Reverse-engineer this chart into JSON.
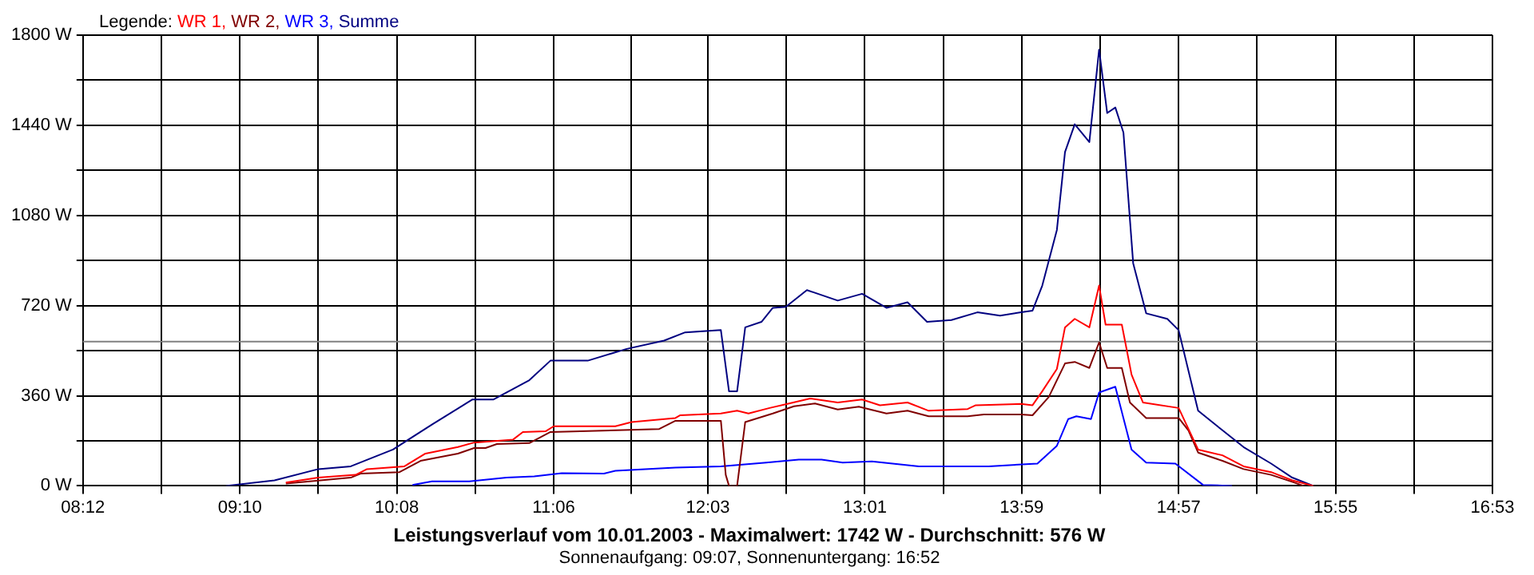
{
  "chart_data": {
    "type": "line",
    "title": "Leistungsverlauf vom 10.01.2003 - Maximalwert: 1742 W - Durchschnitt: 576 W",
    "subtitle": "Sonnenaufgang: 09:07, Sonnenuntergang: 16:52",
    "legend_title": "Legende:",
    "legend": "top left",
    "grid": true,
    "marker": "none",
    "line_style": "solid",
    "xlim": [
      8.2,
      16.8833
    ],
    "xticks": [
      {
        "value": 8.2,
        "label": "08:12"
      },
      {
        "value": 8.6833,
        "label": null
      },
      {
        "value": 9.1667,
        "label": "09:10"
      },
      {
        "value": 9.65,
        "label": null
      },
      {
        "value": 10.1333,
        "label": "10:08"
      },
      {
        "value": 10.6167,
        "label": null
      },
      {
        "value": 11.1,
        "label": "11:06"
      },
      {
        "value": 11.575,
        "label": null
      },
      {
        "value": 12.05,
        "label": "12:03"
      },
      {
        "value": 12.5333,
        "label": null
      },
      {
        "value": 13.0167,
        "label": "13:01"
      },
      {
        "value": 13.5,
        "label": null
      },
      {
        "value": 13.9833,
        "label": "13:59"
      },
      {
        "value": 14.4667,
        "label": null
      },
      {
        "value": 14.95,
        "label": "14:57"
      },
      {
        "value": 15.4333,
        "label": null
      },
      {
        "value": 15.9167,
        "label": "15:55"
      },
      {
        "value": 16.4,
        "label": null
      },
      {
        "value": 16.8833,
        "label": "16:53"
      }
    ],
    "ylim": [
      0,
      1800
    ],
    "yticks": [
      {
        "value": 0,
        "label": "0 W"
      },
      {
        "value": 180,
        "label": null
      },
      {
        "value": 360,
        "label": "360 W"
      },
      {
        "value": 540,
        "label": null
      },
      {
        "value": 720,
        "label": "720 W"
      },
      {
        "value": 900,
        "label": null
      },
      {
        "value": 1080,
        "label": "1080 W"
      },
      {
        "value": 1260,
        "label": null
      },
      {
        "value": 1440,
        "label": "1440 W"
      },
      {
        "value": 1620,
        "label": null
      },
      {
        "value": 1800,
        "label": "1800 W"
      }
    ],
    "ref_lines": [
      {
        "axis": "y",
        "value": 576,
        "color": "#808080"
      }
    ],
    "series": [
      {
        "name": "WR 1,",
        "color": "#ff0000",
        "x": [
          9.45,
          9.65,
          9.88,
          9.95,
          10.18,
          10.31,
          10.51,
          10.61,
          10.85,
          10.91,
          11.05,
          11.1,
          11.48,
          11.58,
          11.85,
          11.88,
          12.13,
          12.23,
          12.3,
          12.43,
          12.55,
          12.68,
          12.85,
          13.0,
          13.11,
          13.28,
          13.41,
          13.65,
          13.7,
          13.98,
          14.05,
          14.11,
          14.2,
          14.25,
          14.31,
          14.4,
          14.46,
          14.5,
          14.6,
          14.66,
          14.73,
          14.95,
          15.07,
          15.22,
          15.35,
          15.52,
          15.65,
          15.78
        ],
        "values": [
          13,
          33,
          44,
          67,
          78,
          129,
          155,
          173,
          185,
          215,
          218,
          238,
          238,
          255,
          271,
          282,
          289,
          300,
          289,
          311,
          329,
          349,
          333,
          345,
          322,
          333,
          300,
          307,
          322,
          327,
          322,
          378,
          467,
          633,
          667,
          633,
          800,
          644,
          644,
          444,
          333,
          311,
          145,
          122,
          78,
          55,
          22,
          0
        ]
      },
      {
        "name": "WR 2,",
        "color": "#800000",
        "x": [
          9.45,
          9.85,
          9.91,
          10.15,
          10.28,
          10.51,
          10.61,
          10.68,
          10.75,
          10.95,
          11.08,
          11.75,
          11.85,
          12.13,
          12.16,
          12.18,
          12.23,
          12.28,
          12.45,
          12.58,
          12.71,
          12.85,
          12.98,
          13.15,
          13.28,
          13.41,
          13.65,
          13.75,
          13.98,
          14.05,
          14.15,
          14.25,
          14.31,
          14.4,
          14.46,
          14.51,
          14.6,
          14.65,
          14.75,
          14.95,
          15.01,
          15.07,
          15.22,
          15.35,
          15.52,
          15.65,
          15.72
        ],
        "values": [
          9,
          33,
          49,
          55,
          100,
          129,
          151,
          151,
          167,
          171,
          215,
          227,
          260,
          260,
          44,
          0,
          0,
          255,
          289,
          318,
          329,
          305,
          316,
          289,
          300,
          278,
          278,
          285,
          285,
          282,
          355,
          489,
          495,
          471,
          573,
          471,
          471,
          333,
          271,
          271,
          222,
          133,
          100,
          67,
          44,
          16,
          0
        ]
      },
      {
        "name": "WR 3,",
        "color": "#0000ff",
        "x": [
          10.23,
          10.35,
          10.58,
          10.81,
          10.98,
          11.15,
          11.41,
          11.48,
          11.85,
          12.13,
          12.41,
          12.61,
          12.75,
          12.88,
          13.06,
          13.35,
          13.78,
          14.08,
          14.2,
          14.27,
          14.32,
          14.41,
          14.46,
          14.56,
          14.66,
          14.75,
          14.93,
          15.1,
          15.28
        ],
        "values": [
          4,
          18,
          18,
          33,
          38,
          51,
          49,
          60,
          73,
          78,
          93,
          105,
          105,
          93,
          98,
          78,
          78,
          89,
          160,
          267,
          278,
          267,
          373,
          396,
          145,
          93,
          89,
          4,
          0
        ]
      },
      {
        "name": "Summe",
        "color": "#000080",
        "x": [
          9.08,
          9.38,
          9.65,
          9.85,
          10.11,
          10.35,
          10.6,
          10.73,
          10.95,
          11.08,
          11.31,
          11.55,
          11.78,
          11.91,
          12.13,
          12.18,
          12.23,
          12.28,
          12.38,
          12.45,
          12.53,
          12.66,
          12.85,
          13.0,
          13.15,
          13.28,
          13.4,
          13.55,
          13.71,
          13.85,
          13.98,
          14.05,
          14.11,
          14.2,
          14.25,
          14.31,
          14.4,
          14.46,
          14.51,
          14.56,
          14.61,
          14.67,
          14.75,
          14.88,
          14.95,
          15.07,
          15.22,
          15.35,
          15.52,
          15.65,
          15.78
        ],
        "values": [
          0,
          22,
          67,
          78,
          145,
          245,
          345,
          345,
          422,
          500,
          500,
          547,
          580,
          613,
          622,
          378,
          378,
          633,
          655,
          711,
          715,
          782,
          740,
          767,
          711,
          733,
          655,
          662,
          693,
          680,
          693,
          700,
          800,
          1022,
          1333,
          1444,
          1373,
          1742,
          1489,
          1511,
          1411,
          889,
          689,
          667,
          622,
          300,
          222,
          155,
          89,
          33,
          0
        ]
      }
    ]
  }
}
